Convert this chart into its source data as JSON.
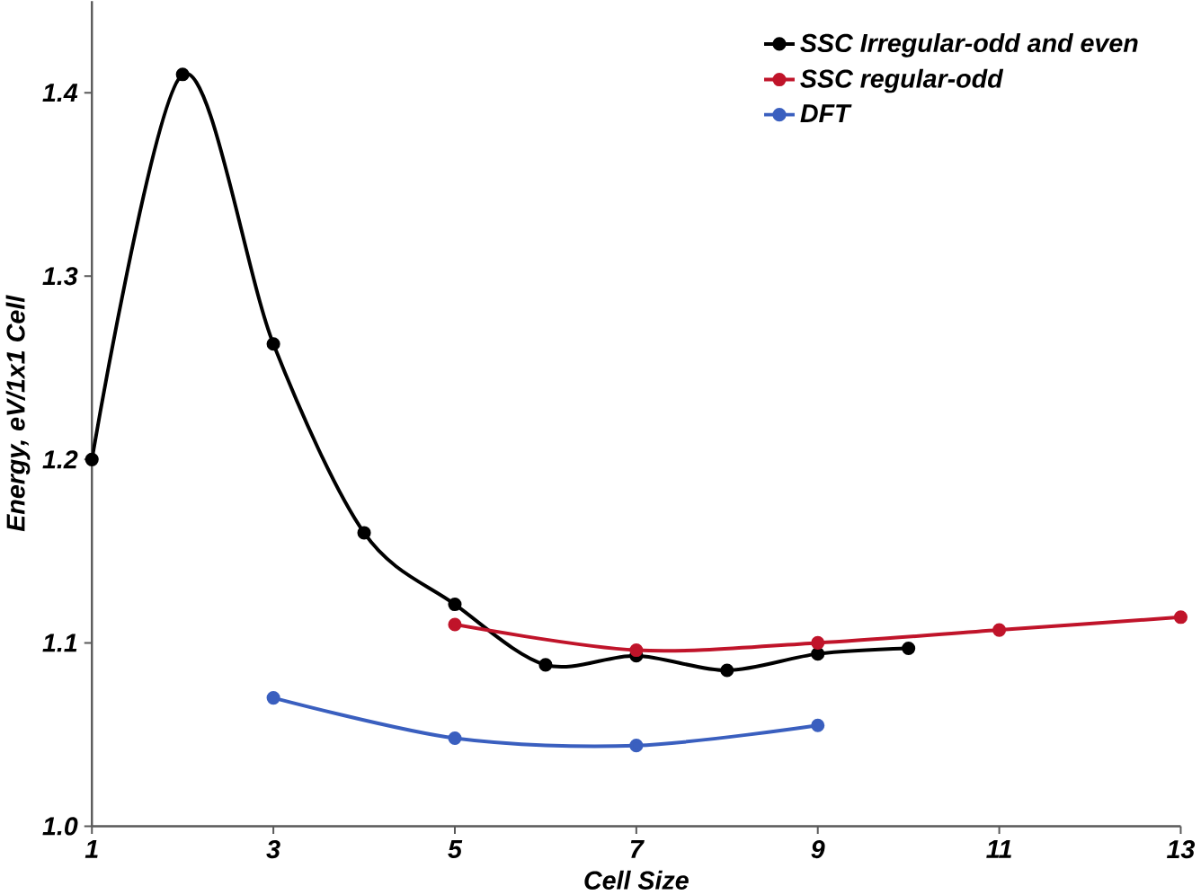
{
  "chart_data": {
    "type": "line",
    "xlabel": "Cell Size",
    "ylabel": "Energy, eV/1x1 Cell",
    "xlim": [
      1,
      13
    ],
    "ylim": [
      1.0,
      1.45
    ],
    "xticks": [
      1,
      3,
      5,
      7,
      9,
      11,
      13
    ],
    "yticks": [
      {
        "value": 1.0,
        "label": "1.0"
      },
      {
        "value": 1.1,
        "label": "1.1"
      },
      {
        "value": 1.2,
        "label": "1.2"
      },
      {
        "value": 1.3,
        "label": "1.3"
      },
      {
        "value": 1.4,
        "label": "1.4"
      }
    ],
    "grid": false,
    "legend": "top right",
    "marker": "circle",
    "line_style": "solid",
    "series": [
      {
        "name": "SSC Irregular-odd and even",
        "color": "#000000",
        "x": [
          1,
          2,
          3,
          4,
          5,
          6,
          7,
          8,
          9,
          10
        ],
        "values": [
          1.2,
          1.41,
          1.263,
          1.16,
          1.121,
          1.088,
          1.093,
          1.085,
          1.094,
          1.097
        ]
      },
      {
        "name": "SSC regular-odd",
        "color": "#c0142a",
        "x": [
          5,
          7,
          9,
          11,
          13
        ],
        "values": [
          1.11,
          1.096,
          1.1,
          1.107,
          1.114
        ]
      },
      {
        "name": "DFT",
        "color": "#3a5fbf",
        "x": [
          3,
          5,
          7,
          9
        ],
        "values": [
          1.07,
          1.048,
          1.044,
          1.055
        ]
      }
    ]
  }
}
